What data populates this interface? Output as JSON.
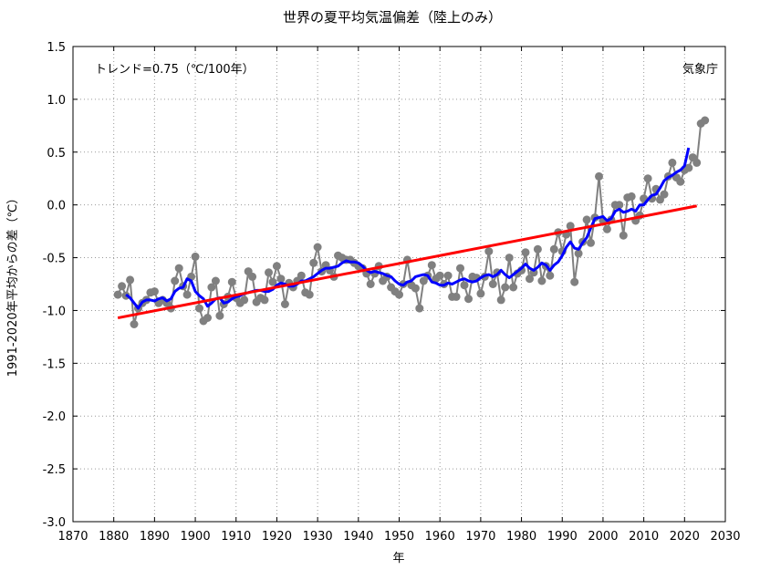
{
  "chart_data": {
    "type": "line",
    "title": "世界の夏平均気温偏差（陸上のみ）",
    "xlabel": "年",
    "ylabel": "1991-2020年平均からの差（℃）",
    "trend_label": "トレンド=0.75（℃/100年）",
    "source_label": "気象庁",
    "xlim": [
      1870,
      2030
    ],
    "ylim": [
      -3.0,
      1.5
    ],
    "x_ticks": [
      "1870",
      "1880",
      "1890",
      "1900",
      "1910",
      "1920",
      "1930",
      "1940",
      "1950",
      "1960",
      "1970",
      "1980",
      "1990",
      "2000",
      "2010",
      "2020",
      "2030"
    ],
    "y_ticks": [
      "1.5",
      "1.0",
      "0.5",
      "0.0",
      "-0.5",
      "-1.0",
      "-1.5",
      "-2.0",
      "-2.5",
      "-3.0"
    ],
    "grid": true,
    "colors": {
      "annual": "#808080",
      "moving_average": "#0000ff",
      "trend": "#ff0000"
    },
    "series": [
      {
        "role": "annual",
        "x_start": 1881,
        "values": [
          -0.85,
          -0.77,
          -0.86,
          -0.71,
          -1.13,
          -0.98,
          -0.93,
          -0.9,
          -0.83,
          -0.82,
          -0.93,
          -0.9,
          -0.93,
          -0.98,
          -0.72,
          -0.6,
          -0.77,
          -0.85,
          -0.68,
          -0.49,
          -0.98,
          -1.1,
          -1.07,
          -0.78,
          -0.72,
          -1.05,
          -0.94,
          -0.87,
          -0.73,
          -0.88,
          -0.93,
          -0.9,
          -0.63,
          -0.68,
          -0.92,
          -0.88,
          -0.9,
          -0.64,
          -0.73,
          -0.58,
          -0.7,
          -0.94,
          -0.74,
          -0.78,
          -0.72,
          -0.67,
          -0.83,
          -0.85,
          -0.55,
          -0.4,
          -0.63,
          -0.57,
          -0.62,
          -0.68,
          -0.48,
          -0.5,
          -0.52,
          -0.52,
          -0.55,
          -0.58,
          -0.6,
          -0.65,
          -0.75,
          -0.65,
          -0.58,
          -0.72,
          -0.68,
          -0.78,
          -0.82,
          -0.85,
          -0.75,
          -0.52,
          -0.76,
          -0.79,
          -0.98,
          -0.72,
          -0.67,
          -0.57,
          -0.7,
          -0.67,
          -0.75,
          -0.67,
          -0.87,
          -0.87,
          -0.6,
          -0.76,
          -0.89,
          -0.68,
          -0.69,
          -0.84,
          -0.68,
          -0.44,
          -0.75,
          -0.64,
          -0.9,
          -0.78,
          -0.5,
          -0.78,
          -0.65,
          -0.62,
          -0.45,
          -0.7,
          -0.64,
          -0.42,
          -0.72,
          -0.58,
          -0.67,
          -0.42,
          -0.26,
          -0.44,
          -0.28,
          -0.2,
          -0.73,
          -0.46,
          -0.35,
          -0.14,
          -0.36,
          -0.12,
          0.27,
          -0.15,
          -0.23,
          -0.14,
          0.0,
          0.0,
          -0.29,
          0.07,
          0.08,
          -0.15,
          -0.1,
          0.06,
          0.25,
          0.06,
          0.15,
          0.05,
          0.1,
          0.27,
          0.4,
          0.26,
          0.22,
          0.33,
          0.35,
          0.45,
          0.4,
          0.77,
          0.8
        ]
      },
      {
        "role": "moving_average",
        "x_start": 1883,
        "values": [
          -0.85,
          -0.88,
          -0.93,
          -0.98,
          -0.92,
          -0.9,
          -0.9,
          -0.91,
          -0.89,
          -0.88,
          -0.91,
          -0.89,
          -0.82,
          -0.79,
          -0.78,
          -0.7,
          -0.72,
          -0.82,
          -0.86,
          -0.89,
          -0.96,
          -0.93,
          -0.89,
          -0.88,
          -0.93,
          -0.92,
          -0.89,
          -0.87,
          -0.86,
          -0.84,
          -0.83,
          -0.82,
          -0.81,
          -0.81,
          -0.82,
          -0.82,
          -0.8,
          -0.76,
          -0.74,
          -0.75,
          -0.77,
          -0.77,
          -0.75,
          -0.72,
          -0.72,
          -0.7,
          -0.68,
          -0.65,
          -0.62,
          -0.6,
          -0.6,
          -0.59,
          -0.58,
          -0.55,
          -0.53,
          -0.54,
          -0.54,
          -0.55,
          -0.58,
          -0.62,
          -0.64,
          -0.63,
          -0.64,
          -0.65,
          -0.67,
          -0.68,
          -0.72,
          -0.75,
          -0.76,
          -0.73,
          -0.72,
          -0.68,
          -0.67,
          -0.66,
          -0.67,
          -0.73,
          -0.74,
          -0.76,
          -0.76,
          -0.74,
          -0.75,
          -0.73,
          -0.71,
          -0.7,
          -0.72,
          -0.73,
          -0.72,
          -0.69,
          -0.67,
          -0.66,
          -0.68,
          -0.66,
          -0.62,
          -0.66,
          -0.69,
          -0.66,
          -0.63,
          -0.6,
          -0.56,
          -0.6,
          -0.62,
          -0.59,
          -0.55,
          -0.57,
          -0.62,
          -0.57,
          -0.54,
          -0.48,
          -0.4,
          -0.35,
          -0.41,
          -0.42,
          -0.36,
          -0.31,
          -0.22,
          -0.13,
          -0.12,
          -0.11,
          -0.15,
          -0.13,
          -0.06,
          -0.04,
          -0.07,
          -0.06,
          -0.04,
          -0.06,
          0.0,
          0.0,
          0.05,
          0.09,
          0.1,
          0.16,
          0.23,
          0.26,
          0.28,
          0.31,
          0.33,
          0.37,
          0.54
        ]
      },
      {
        "role": "trend",
        "x": [
          1881,
          2023
        ],
        "values": [
          -1.07,
          -0.01
        ]
      }
    ]
  }
}
